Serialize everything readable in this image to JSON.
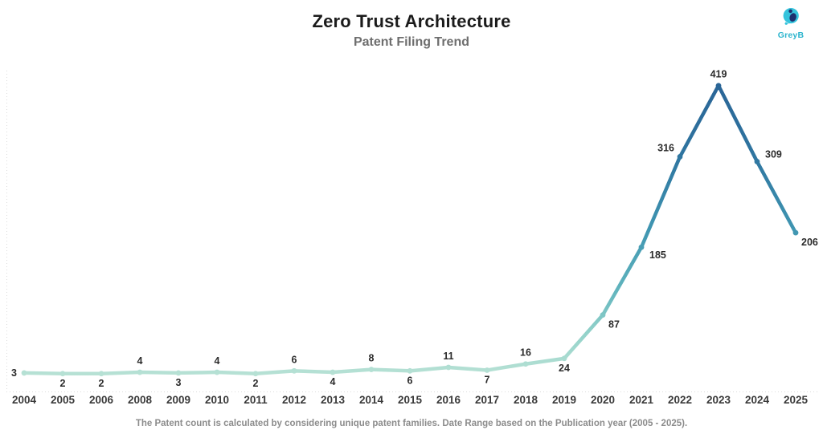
{
  "header": {
    "title": "Zero Trust Architecture",
    "subtitle": "Patent Filing Trend"
  },
  "logo": {
    "text": "GreyB",
    "accent_color": "#35c3dc",
    "dark_color": "#1d2f6e"
  },
  "footer": {
    "note": "The Patent count is calculated by considering unique patent families. Date Range based on the Publication year (2005 - 2025)."
  },
  "chart_data": {
    "type": "line",
    "title": "Zero Trust Architecture",
    "subtitle": "Patent Filing Trend",
    "categories": [
      "2004",
      "2005",
      "2006",
      "2008",
      "2009",
      "2010",
      "2011",
      "2012",
      "2013",
      "2014",
      "2015",
      "2016",
      "2017",
      "2018",
      "2019",
      "2020",
      "2021",
      "2022",
      "2023",
      "2024",
      "2025"
    ],
    "values": [
      3,
      2,
      2,
      4,
      3,
      4,
      2,
      6,
      4,
      8,
      6,
      11,
      7,
      16,
      24,
      87,
      185,
      316,
      419,
      309,
      206
    ],
    "label_placements": [
      "left",
      "below",
      "below",
      "above",
      "below",
      "above",
      "below",
      "above",
      "below",
      "above",
      "below",
      "above",
      "below",
      "above",
      "below",
      "below-right",
      "right-below",
      "left-above",
      "above",
      "right-above",
      "below-right"
    ],
    "xlabel": "",
    "ylabel": "",
    "ylim": [
      0,
      440
    ],
    "grid": false,
    "legend": "none",
    "line_gradient": [
      "#2a6496",
      "#2f75a0",
      "#3f95b1",
      "#5fb3bd",
      "#93d2ca",
      "#b9e2d5"
    ],
    "axis_line_color": "#dcdcdc",
    "tick_label_color": "#3a3a3a",
    "data_label_color": "#2b2b2b"
  }
}
